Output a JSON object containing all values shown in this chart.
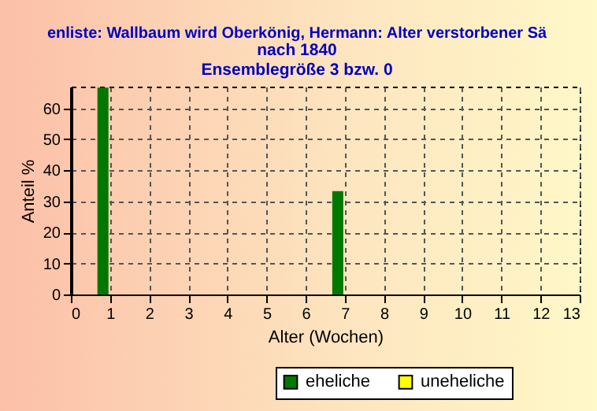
{
  "chart_data": {
    "type": "bar",
    "title": "enliste: Wallbaum wird Oberkönig, Hermann: Alter verstorbener Sä",
    "subtitle": "nach 1840\nEnsemblegröße 3 bzw. 0",
    "xlabel": "Alter (Wochen)",
    "ylabel": "Anteil %",
    "x": [
      0,
      1,
      2,
      3,
      4,
      5,
      6,
      7,
      8,
      9,
      10,
      11,
      12,
      13
    ],
    "series": [
      {
        "name": "eheliche",
        "color": "#007800",
        "values": [
          0,
          66.7,
          0,
          0,
          0,
          0,
          0,
          33.3,
          0,
          0,
          0,
          0,
          0,
          0
        ]
      },
      {
        "name": "uneheliche",
        "color": "#ffff00",
        "values": [
          0,
          0,
          0,
          0,
          0,
          0,
          0,
          0,
          0,
          0,
          0,
          0,
          0,
          0
        ]
      }
    ],
    "xlim": [
      0,
      13
    ],
    "xticks": [
      0,
      1,
      2,
      3,
      4,
      5,
      6,
      7,
      8,
      9,
      10,
      11,
      12,
      13
    ],
    "ylim": [
      0,
      67
    ],
    "yticks": [
      0,
      10,
      20,
      30,
      40,
      50,
      60
    ],
    "grid": true,
    "legend": "bottom"
  }
}
